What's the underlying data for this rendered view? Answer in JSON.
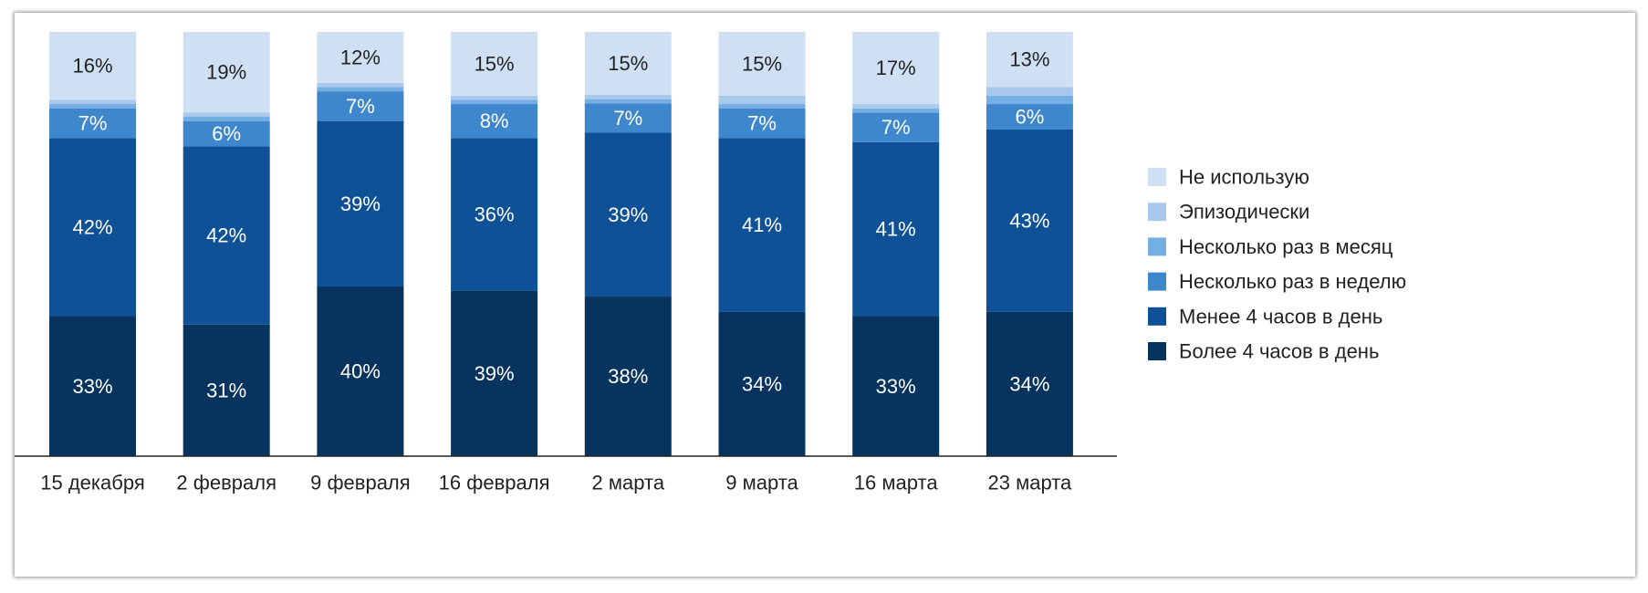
{
  "chart_data": {
    "type": "bar",
    "stacked": true,
    "normalized_percent": true,
    "categories": [
      "15 декабря",
      "2 февраля",
      "9 февраля",
      "16 февраля",
      "2 марта",
      "9 марта",
      "16 марта",
      "23 марта"
    ],
    "series": [
      {
        "name": "Более 4 часов в день",
        "color": "#07335f",
        "values": [
          33,
          31,
          40,
          39,
          38,
          34,
          33,
          34
        ],
        "labels": [
          "33%",
          "31%",
          "40%",
          "39%",
          "38%",
          "34%",
          "33%",
          "34%"
        ]
      },
      {
        "name": "Менее 4 часов в день",
        "color": "#0e5196",
        "values": [
          42,
          42,
          39,
          36,
          39,
          41,
          41,
          43
        ],
        "labels": [
          "42%",
          "42%",
          "39%",
          "36%",
          "39%",
          "41%",
          "41%",
          "43%"
        ]
      },
      {
        "name": "Несколько раз в неделю",
        "color": "#3f87cc",
        "values": [
          7,
          6,
          7,
          8,
          7,
          7,
          7,
          6
        ],
        "labels": [
          "7%",
          "6%",
          "7%",
          "8%",
          "7%",
          "7%",
          "7%",
          "6%"
        ]
      },
      {
        "name": "Несколько раз в месяц",
        "color": "#75aee2",
        "values": [
          1,
          1,
          1,
          1,
          1,
          1,
          1,
          2
        ],
        "labels": [
          "",
          "",
          "",
          "",
          "",
          "",
          "",
          ""
        ]
      },
      {
        "name": "Эпизодически",
        "color": "#a8c9ec",
        "values": [
          1,
          1,
          1,
          1,
          1,
          2,
          1,
          2
        ],
        "labels": [
          "",
          "",
          "",
          "",
          "",
          "",
          "",
          ""
        ]
      },
      {
        "name": "Не использую",
        "color": "#cfe0f4",
        "values": [
          16,
          19,
          12,
          15,
          15,
          15,
          17,
          13
        ],
        "labels": [
          "16%",
          "19%",
          "12%",
          "15%",
          "15%",
          "15%",
          "17%",
          "13%"
        ]
      }
    ],
    "legend_order": [
      "Не использую",
      "Эпизодически",
      "Несколько раз в месяц",
      "Несколько раз в неделю",
      "Менее 4 часов в день",
      "Более 4 часов в день"
    ],
    "legend_position": "right",
    "ylim": [
      0,
      100
    ],
    "grid": false,
    "title": "",
    "xlabel": "",
    "ylabel": ""
  }
}
